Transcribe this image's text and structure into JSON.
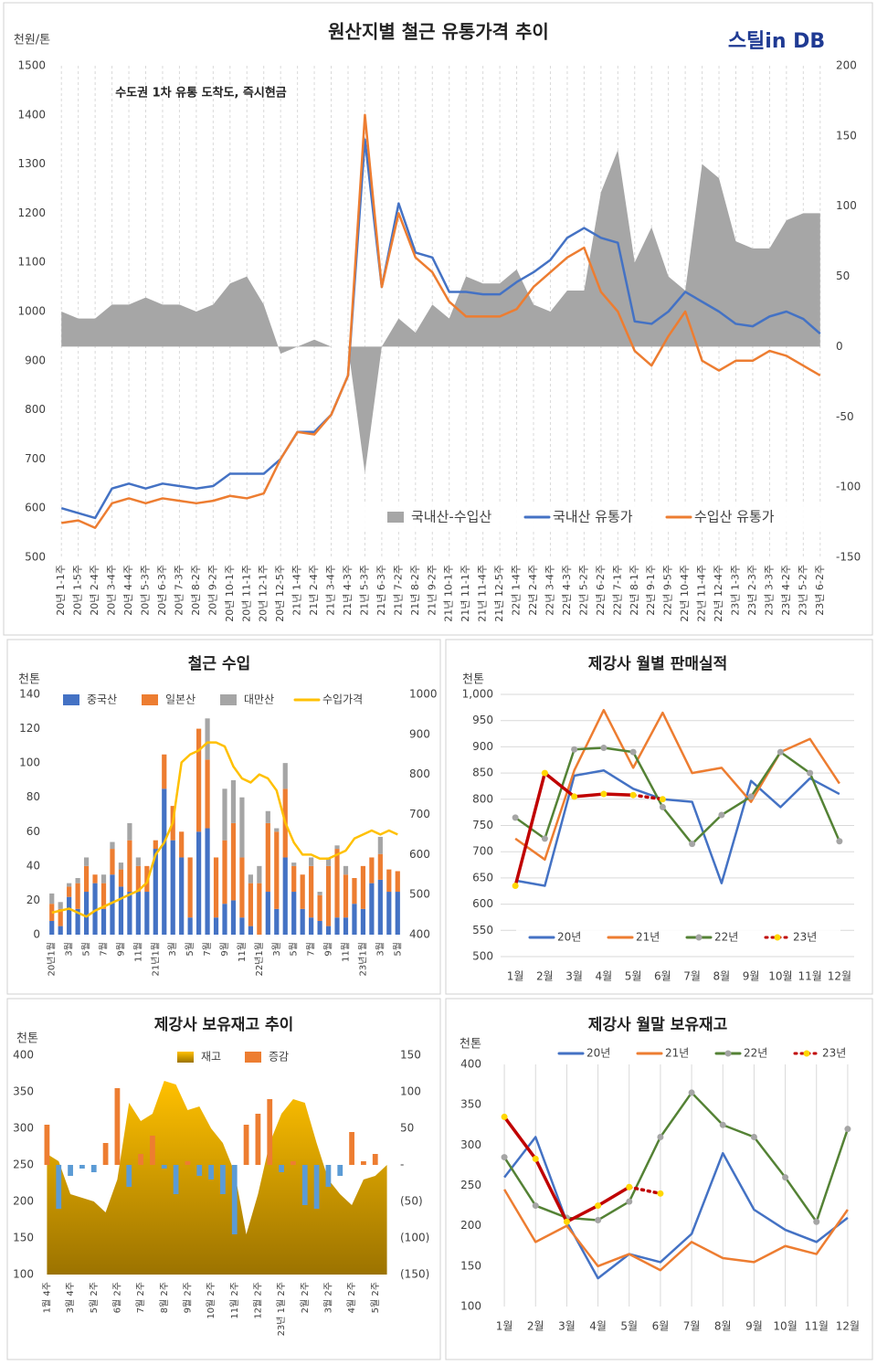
{
  "chart_data": [
    {
      "type": "combo",
      "title": "원산지별 철근 유통가격 추이",
      "y_label": "천원/톤",
      "logo": "스틸in DB",
      "annotation": "수도권 1차 유통 도착도, 즉시현금",
      "grid": "x",
      "categories": [
        "20년 1-1주",
        "20년 1-5주",
        "20년 2-4주",
        "20년 3-4주",
        "20년 4-4주",
        "20년 5-3주",
        "20년 6-3주",
        "20년 7-3주",
        "20년 8-2주",
        "20년 9-2주",
        "20년 10-1주",
        "20년 11-1주",
        "20년 12-1주",
        "20년 12-5주",
        "21년 1-4주",
        "21년 2-4주",
        "21년 3-4주",
        "21년 4-3주",
        "21년 5-3주",
        "21년 6-3주",
        "21년 7-2주",
        "21년 8-2주",
        "21년 9-2주",
        "21년 10-1주",
        "21년 11-1주",
        "21년 11-4주",
        "21년 12-5주",
        "22년 1-4주",
        "22년 2-4주",
        "22년 3-4주",
        "22년 4-3주",
        "22년 5-2주",
        "22년 6-2주",
        "22년 7-1주",
        "22년 8-1주",
        "22년 9-1주",
        "22년 9-5주",
        "22년 10-4주",
        "22년 11-4주",
        "22년 12-4주",
        "23년 1-3주",
        "23년 2-3주",
        "23년 3-3주",
        "23년 4-2주",
        "23년 5-2주",
        "23년 6-2주"
      ],
      "series": [
        {
          "name": "국내산-수입산",
          "type": "area",
          "axis": "y2",
          "color": "#a6a6a6",
          "values": [
            25,
            20,
            20,
            30,
            30,
            35,
            30,
            30,
            25,
            30,
            45,
            50,
            30,
            -5,
            0,
            5,
            0,
            0,
            -90,
            0,
            20,
            10,
            30,
            20,
            50,
            45,
            45,
            55,
            30,
            25,
            40,
            40,
            110,
            140,
            60,
            85,
            50,
            40,
            130,
            120,
            75,
            70,
            70,
            90,
            95,
            95
          ]
        },
        {
          "name": "국내산 유통가",
          "type": "line",
          "color": "#4472c4",
          "values": [
            600,
            590,
            580,
            640,
            650,
            640,
            650,
            645,
            640,
            645,
            670,
            670,
            670,
            700,
            755,
            755,
            790,
            870,
            1350,
            1050,
            1220,
            1120,
            1110,
            1040,
            1040,
            1035,
            1035,
            1060,
            1080,
            1105,
            1150,
            1170,
            1150,
            1140,
            980,
            975,
            1000,
            1040,
            1020,
            1000,
            975,
            970,
            990,
            1000,
            985,
            955
          ]
        },
        {
          "name": "수입산 유통가",
          "type": "line",
          "color": "#ed7d31",
          "values": [
            570,
            575,
            560,
            610,
            620,
            610,
            620,
            615,
            610,
            615,
            625,
            620,
            630,
            700,
            755,
            750,
            790,
            870,
            1400,
            1050,
            1200,
            1110,
            1080,
            1020,
            990,
            990,
            990,
            1005,
            1050,
            1080,
            1110,
            1130,
            1040,
            1000,
            920,
            890,
            950,
            1000,
            900,
            880,
            900,
            900,
            920,
            910,
            890,
            870
          ]
        }
      ],
      "ylim": [
        500,
        1500
      ],
      "yticks": [
        500,
        600,
        700,
        800,
        900,
        1000,
        1100,
        1200,
        1300,
        1400,
        1500
      ],
      "y2lim": [
        -150,
        200
      ],
      "y2ticks": [
        -150,
        -100,
        -50,
        0,
        50,
        100,
        150,
        200
      ]
    },
    {
      "type": "combo",
      "title": "철근 수입",
      "y_label": "천톤",
      "categories": [
        "20년1월",
        null,
        "3월",
        null,
        "5월",
        null,
        "7월",
        null,
        "9월",
        null,
        "11월",
        null,
        "21년1월",
        null,
        "3월",
        null,
        "5월",
        null,
        "7월",
        null,
        "9월",
        null,
        "11월",
        null,
        "22년1월",
        null,
        "3월",
        null,
        "5월",
        null,
        "7월",
        null,
        "9월",
        null,
        "11월",
        null,
        "23년1월",
        null,
        "3월",
        null,
        "5월"
      ],
      "series": [
        {
          "name": "중국산",
          "type": "bar",
          "stack": true,
          "color": "#4472c4",
          "values": [
            8,
            5,
            22,
            15,
            25,
            30,
            15,
            35,
            28,
            25,
            25,
            25,
            50,
            85,
            55,
            45,
            10,
            60,
            62,
            10,
            18,
            20,
            10,
            5,
            0,
            25,
            15,
            45,
            25,
            15,
            10,
            8,
            5,
            10,
            10,
            18,
            15,
            30,
            32,
            25,
            25
          ]
        },
        {
          "name": "일본산",
          "type": "bar",
          "stack": true,
          "color": "#ed7d31",
          "values": [
            10,
            10,
            6,
            15,
            15,
            5,
            15,
            15,
            10,
            30,
            15,
            15,
            5,
            20,
            20,
            15,
            35,
            60,
            40,
            35,
            37,
            45,
            35,
            25,
            30,
            40,
            45,
            40,
            15,
            20,
            30,
            15,
            35,
            40,
            25,
            15,
            25,
            15,
            15,
            13,
            12
          ]
        },
        {
          "name": "대만산",
          "type": "bar",
          "stack": true,
          "color": "#a5a5a5",
          "values": [
            6,
            4,
            2,
            3,
            5,
            0,
            5,
            4,
            4,
            10,
            5,
            0,
            0,
            0,
            0,
            0,
            0,
            0,
            24,
            0,
            30,
            25,
            35,
            5,
            10,
            7,
            2,
            15,
            2,
            0,
            5,
            2,
            5,
            2,
            5,
            0,
            0,
            0,
            10,
            0,
            0
          ]
        },
        {
          "name": "수입가격",
          "type": "line",
          "axis": "y2",
          "color": "#ffc000",
          "values": [
            455,
            460,
            465,
            455,
            445,
            460,
            470,
            480,
            490,
            500,
            510,
            530,
            600,
            630,
            680,
            830,
            850,
            860,
            880,
            880,
            870,
            820,
            790,
            780,
            800,
            790,
            760,
            680,
            630,
            600,
            600,
            590,
            590,
            600,
            610,
            640,
            650,
            660,
            650,
            660,
            650
          ]
        }
      ],
      "ylim": [
        0,
        140
      ],
      "yticks": [
        0,
        20,
        40,
        60,
        80,
        100,
        120,
        140
      ],
      "y2lim": [
        400,
        1000
      ],
      "y2ticks": [
        400,
        500,
        600,
        700,
        800,
        900,
        1000
      ]
    },
    {
      "type": "line",
      "title": "제강사 월별 판매실적",
      "y_label": "천톤",
      "grid": "y",
      "categories": [
        "1월",
        "2월",
        "3월",
        "4월",
        "5월",
        "6월",
        "7월",
        "8월",
        "9월",
        "10월",
        "11월",
        "12월"
      ],
      "series": [
        {
          "name": "20년",
          "color": "#4472c4",
          "values": [
            645,
            635,
            845,
            855,
            820,
            800,
            795,
            640,
            835,
            785,
            840,
            810
          ]
        },
        {
          "name": "21년",
          "color": "#ed7d31",
          "values": [
            725,
            685,
            855,
            970,
            860,
            965,
            850,
            860,
            795,
            890,
            915,
            830
          ]
        },
        {
          "name": "22년",
          "color": "#548235",
          "marker": true,
          "marker_color": "#a5a5a5",
          "values": [
            765,
            725,
            895,
            898,
            890,
            785,
            715,
            770,
            805,
            890,
            850,
            720
          ]
        },
        {
          "name": "23년",
          "color": "#c00000",
          "marker": true,
          "marker_color": "#ffd700",
          "dash_from": 4,
          "values": [
            635,
            850,
            805,
            810,
            808,
            800,
            null,
            null,
            null,
            null,
            null,
            null
          ]
        }
      ],
      "ylim": [
        500,
        1000
      ],
      "yticks": [
        500,
        550,
        600,
        650,
        700,
        750,
        800,
        850,
        900,
        950,
        {
          "value": 1000,
          "label": "1,000"
        }
      ]
    },
    {
      "type": "combo",
      "title": "제강사 보유재고 추이",
      "y_label": "천톤",
      "categories": [
        "1월 4주",
        null,
        "3월 4주",
        null,
        "5월 2주",
        null,
        "6월 2주",
        null,
        "7월 2주",
        null,
        "8월 2주",
        null,
        "9월 2주",
        null,
        "10월 2주",
        null,
        "11월 2주",
        null,
        "12월 2주",
        null,
        "23년 1월 2주",
        null,
        "2월 2주",
        null,
        "3월 2주",
        null,
        "4월 2주",
        null,
        "5월 2주",
        null
      ],
      "series": [
        {
          "name": "재고",
          "type": "area",
          "gradient": true,
          "color": "#ffc000",
          "values": [
            265,
            255,
            210,
            205,
            200,
            185,
            230,
            335,
            310,
            320,
            365,
            360,
            325,
            330,
            300,
            280,
            240,
            155,
            210,
            280,
            320,
            340,
            335,
            280,
            230,
            210,
            195,
            230,
            235,
            250
          ]
        },
        {
          "name": "증감",
          "type": "bar",
          "axis": "y2",
          "color": "#ed7d31",
          "neg_color": "#5b9bd5",
          "values": [
            55,
            -60,
            -15,
            -5,
            -10,
            30,
            105,
            -30,
            15,
            40,
            -5,
            -40,
            5,
            -15,
            -20,
            -40,
            -95,
            55,
            70,
            90,
            -10,
            5,
            -55,
            -60,
            -30,
            -15,
            45,
            5,
            15,
            0
          ]
        }
      ],
      "ylim": [
        100,
        400
      ],
      "yticks": [
        100,
        150,
        200,
        250,
        300,
        350,
        400
      ],
      "y2lim": [
        -150,
        150
      ],
      "y2ticks": [
        {
          "value": -150,
          "label": "(150)"
        },
        {
          "value": -100,
          "label": "(100)"
        },
        {
          "value": -50,
          "label": "(50)"
        },
        {
          "value": 0,
          "label": "-"
        },
        50,
        100,
        150
      ]
    },
    {
      "type": "line",
      "title": "제강사 월말 보유재고",
      "y_label": "천톤",
      "grid": "x",
      "categories": [
        "1월",
        "2월",
        "3월",
        "4월",
        "5월",
        "6월",
        "7월",
        "8월",
        "9월",
        "10월",
        "11월",
        "12월"
      ],
      "series": [
        {
          "name": "20년",
          "color": "#4472c4",
          "values": [
            260,
            310,
            205,
            135,
            165,
            155,
            190,
            290,
            220,
            195,
            180,
            210
          ]
        },
        {
          "name": "21년",
          "color": "#ed7d31",
          "values": [
            245,
            180,
            200,
            150,
            165,
            145,
            180,
            160,
            155,
            175,
            165,
            220
          ]
        },
        {
          "name": "22년",
          "color": "#548235",
          "marker": true,
          "marker_color": "#a5a5a5",
          "values": [
            285,
            225,
            210,
            207,
            230,
            310,
            365,
            325,
            310,
            260,
            205,
            320
          ]
        },
        {
          "name": "23년",
          "color": "#c00000",
          "marker": true,
          "marker_color": "#ffd700",
          "dash_from": 4,
          "values": [
            335,
            283,
            205,
            225,
            248,
            240,
            null,
            null,
            null,
            null,
            null,
            null
          ]
        }
      ],
      "ylim": [
        100,
        400
      ],
      "yticks": [
        100,
        150,
        200,
        250,
        300,
        350,
        400
      ]
    }
  ]
}
